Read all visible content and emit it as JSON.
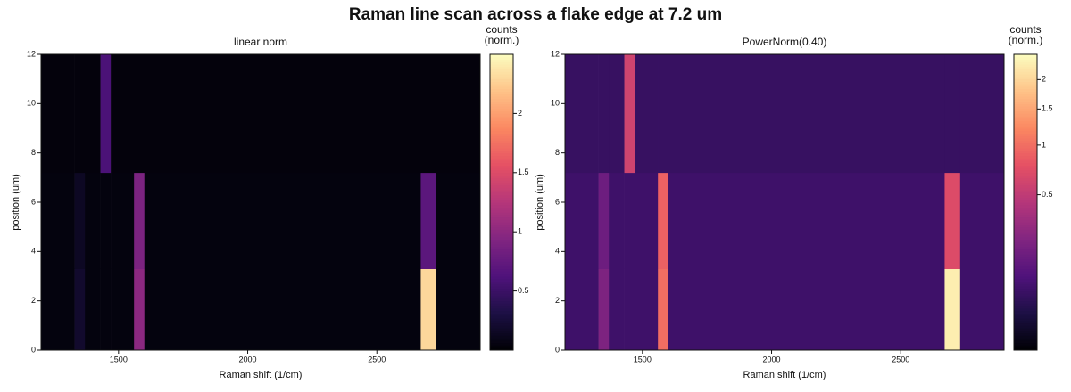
{
  "suptitle": "Raman line scan across a flake edge at 7.2 um",
  "chart_data": [
    {
      "type": "heatmap",
      "title": "linear norm",
      "xlabel": "Raman shift (1/cm)",
      "ylabel": "position (um)",
      "colormap": "magma",
      "norm": "linear",
      "xbins": [
        1200,
        1330,
        1370,
        1430,
        1470,
        1560,
        1600,
        2670,
        2730,
        2900
      ],
      "ybins": [
        0,
        3.3,
        7.2,
        12
      ],
      "values": [
        [
          0.05,
          0.2,
          0.05,
          0.05,
          0.05,
          1.0,
          0.05,
          2.3,
          0.05
        ],
        [
          0.05,
          0.15,
          0.05,
          0.05,
          0.05,
          0.9,
          0.05,
          0.7,
          0.05
        ],
        [
          0.04,
          0.04,
          0.04,
          0.6,
          0.04,
          0.04,
          0.04,
          0.04,
          0.04
        ]
      ],
      "xlim": [
        1200,
        2900
      ],
      "ylim": [
        0,
        12
      ],
      "xticks": [
        1500,
        2000,
        2500
      ],
      "yticks": [
        0,
        2,
        4,
        6,
        8,
        10,
        12
      ],
      "colorbar_label": [
        "counts",
        "(norm.)"
      ],
      "clim": [
        0,
        2.5
      ],
      "cticks": [
        0.5,
        1,
        1.5,
        2
      ]
    },
    {
      "type": "heatmap",
      "title": "PowerNorm(0.40)",
      "xlabel": "Raman shift (1/cm)",
      "ylabel": "position (um)",
      "colormap": "magma",
      "norm": "power",
      "gamma": 0.4,
      "xbins": [
        1200,
        1330,
        1370,
        1430,
        1470,
        1560,
        1600,
        2670,
        2730,
        2900
      ],
      "ybins": [
        0,
        3.3,
        7.2,
        12
      ],
      "values": [
        [
          0.05,
          0.2,
          0.05,
          0.05,
          0.05,
          1.0,
          0.05,
          2.3,
          0.05
        ],
        [
          0.05,
          0.15,
          0.05,
          0.05,
          0.05,
          0.9,
          0.05,
          0.7,
          0.05
        ],
        [
          0.04,
          0.04,
          0.04,
          0.6,
          0.04,
          0.04,
          0.04,
          0.04,
          0.04
        ]
      ],
      "xlim": [
        1200,
        2900
      ],
      "ylim": [
        0,
        12
      ],
      "xticks": [
        1500,
        2000,
        2500
      ],
      "yticks": [
        0,
        2,
        4,
        6,
        8,
        10,
        12
      ],
      "colorbar_label": [
        "counts",
        "(norm.)"
      ],
      "clim": [
        0,
        2.5
      ],
      "cticks": [
        0.5,
        1,
        1.5,
        2
      ]
    }
  ]
}
